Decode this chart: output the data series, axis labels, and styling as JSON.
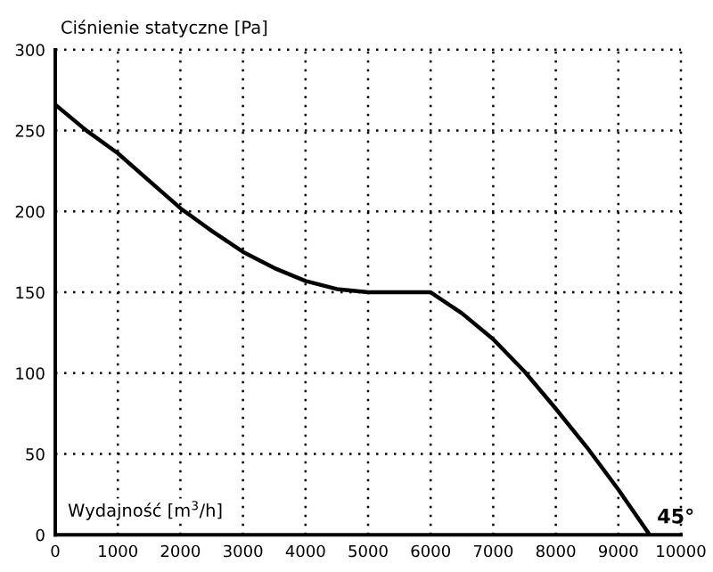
{
  "chart_data": {
    "type": "line",
    "ylabel": "Ciśnienie statyczne [Pa]",
    "xlabel": "Wydajność [m$^{3}$/h]",
    "x": [
      0,
      500,
      1000,
      1500,
      2000,
      2500,
      3000,
      3500,
      4000,
      4500,
      5000,
      5500,
      6000,
      6500,
      7000,
      7500,
      8000,
      8500,
      9000,
      9500
    ],
    "series": [
      {
        "name": "45°",
        "color": "#000000",
        "values": [
          266,
          250,
          236,
          219,
          202,
          188,
          175,
          165,
          157,
          152,
          150,
          150,
          150,
          137,
          121,
          101,
          78,
          54,
          28,
          0
        ]
      }
    ],
    "xlim": [
      0,
      10000
    ],
    "xticks": [
      0,
      1000,
      2000,
      3000,
      4000,
      5000,
      6000,
      7000,
      8000,
      9000,
      10000
    ],
    "ylim": [
      0,
      300
    ],
    "yticks": [
      0,
      50,
      100,
      150,
      200,
      250,
      300
    ],
    "grid": true,
    "marker": "none",
    "line_style": "solid"
  }
}
